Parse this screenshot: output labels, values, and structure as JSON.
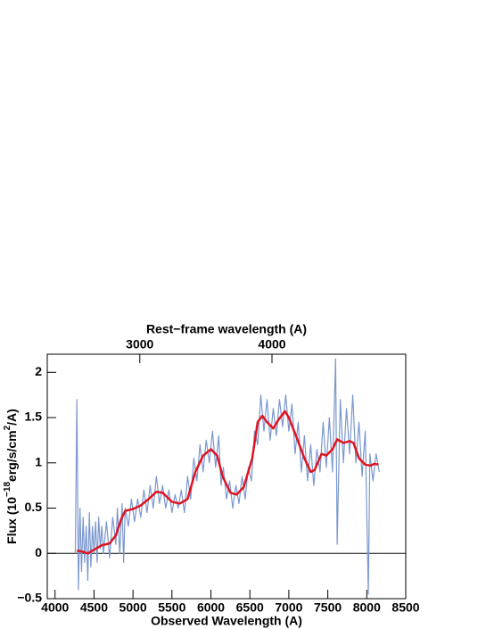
{
  "chart_data": {
    "type": "line",
    "top_axis_label": "Rest−frame wavelength (A)",
    "xlabel": "Observed Wavelength (A)",
    "ylabel": [
      "Flux (10",
      "−18",
      "erg/s/cm",
      "2",
      "/A)"
    ],
    "xlim": [
      3900,
      8500
    ],
    "xticks": [
      4000,
      4500,
      5000,
      5500,
      6000,
      6500,
      7000,
      7500,
      8000,
      8500
    ],
    "x2lim": [
      2300,
      5012
    ],
    "x2ticks": [
      3000,
      4000
    ],
    "ylim": [
      -0.5,
      2.2
    ],
    "yticks": [
      {
        "value": -0.5,
        "label": "−0.5"
      },
      0,
      0.5,
      1,
      1.5,
      2
    ],
    "hline": 0,
    "series": [
      {
        "color": "#7b97d0",
        "x": [
          4260,
          4280,
          4300,
          4320,
          4340,
          4360,
          4380,
          4400,
          4420,
          4440,
          4460,
          4480,
          4500,
          4520,
          4540,
          4560,
          4580,
          4600,
          4620,
          4660,
          4700,
          4740,
          4780,
          4800,
          4830,
          4860,
          4880,
          4900,
          4940,
          4980,
          5020,
          5060,
          5100,
          5140,
          5180,
          5220,
          5260,
          5300,
          5340,
          5380,
          5420,
          5460,
          5500,
          5540,
          5580,
          5620,
          5660,
          5700,
          5740,
          5780,
          5820,
          5860,
          5900,
          5940,
          5980,
          6020,
          6060,
          6100,
          6130,
          6160,
          6200,
          6240,
          6280,
          6320,
          6360,
          6400,
          6440,
          6480,
          6520,
          6560,
          6600,
          6640,
          6680,
          6720,
          6760,
          6800,
          6840,
          6880,
          6920,
          6960,
          7000,
          7040,
          7080,
          7120,
          7160,
          7200,
          7240,
          7280,
          7320,
          7360,
          7400,
          7440,
          7480,
          7520,
          7560,
          7600,
          7620,
          7660,
          7700,
          7740,
          7780,
          7820,
          7860,
          7900,
          7940,
          7980,
          8020,
          8040,
          8080,
          8120,
          8160
        ],
        "values": [
          0.0,
          1.7,
          -0.4,
          0.5,
          -0.2,
          0.4,
          -0.1,
          0.3,
          -0.3,
          0.45,
          -0.15,
          0.3,
          0.0,
          0.35,
          -0.1,
          0.4,
          0.05,
          0.3,
          0.0,
          0.35,
          -0.05,
          0.4,
          0.1,
          0.5,
          0.0,
          0.55,
          -0.1,
          0.5,
          0.3,
          0.6,
          0.35,
          0.6,
          0.4,
          0.7,
          0.45,
          0.75,
          0.5,
          0.85,
          0.55,
          0.75,
          0.5,
          0.7,
          0.45,
          0.65,
          0.5,
          0.7,
          0.45,
          0.85,
          0.6,
          1.05,
          0.8,
          1.2,
          0.9,
          1.25,
          1.0,
          1.35,
          0.95,
          1.3,
          0.75,
          0.95,
          0.6,
          0.8,
          0.5,
          0.75,
          0.55,
          0.85,
          0.6,
          0.95,
          0.8,
          1.35,
          1.2,
          1.75,
          1.35,
          1.7,
          1.25,
          1.6,
          1.3,
          1.7,
          1.4,
          1.75,
          1.35,
          1.65,
          1.1,
          1.45,
          0.9,
          1.3,
          0.8,
          1.2,
          0.75,
          1.15,
          0.9,
          1.45,
          0.95,
          1.5,
          0.9,
          2.15,
          0.1,
          1.7,
          1.0,
          1.6,
          1.1,
          1.75,
          1.0,
          1.45,
          0.85,
          1.35,
          -0.45,
          1.1,
          0.8,
          1.1,
          0.9
        ]
      },
      {
        "color": "#e0141e",
        "x": [
          4280,
          4350,
          4420,
          4500,
          4600,
          4700,
          4780,
          4850,
          4900,
          5000,
          5100,
          5200,
          5300,
          5380,
          5500,
          5600,
          5700,
          5800,
          5900,
          6000,
          6080,
          6150,
          6250,
          6330,
          6420,
          6530,
          6600,
          6660,
          6720,
          6800,
          6870,
          6950,
          7000,
          7100,
          7200,
          7280,
          7330,
          7420,
          7480,
          7560,
          7620,
          7700,
          7780,
          7830,
          7900,
          7980,
          8050,
          8100,
          8150
        ],
        "values": [
          0.03,
          0.02,
          0.0,
          0.04,
          0.09,
          0.11,
          0.2,
          0.38,
          0.47,
          0.49,
          0.53,
          0.6,
          0.68,
          0.67,
          0.57,
          0.55,
          0.6,
          0.9,
          1.08,
          1.15,
          1.08,
          0.85,
          0.67,
          0.65,
          0.73,
          1.05,
          1.45,
          1.52,
          1.45,
          1.38,
          1.48,
          1.57,
          1.5,
          1.28,
          1.05,
          0.9,
          0.92,
          1.1,
          1.08,
          1.15,
          1.26,
          1.22,
          1.24,
          1.22,
          1.05,
          0.98,
          0.97,
          0.99,
          0.98
        ]
      }
    ]
  }
}
